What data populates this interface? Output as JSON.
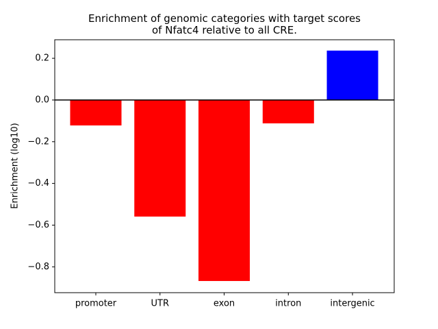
{
  "chart_data": {
    "type": "bar",
    "title": "Enrichment of genomic categories with target scores\nof Nfatc4 relative to all CRE.",
    "ylabel": "Enrichment (log10)",
    "categories": [
      "promoter",
      "UTR",
      "exon",
      "intron",
      "intergenic"
    ],
    "values": [
      -0.122,
      -0.559,
      -0.868,
      -0.112,
      0.237
    ],
    "colors": [
      "#ff0000",
      "#ff0000",
      "#ff0000",
      "#ff0000",
      "#0000ff"
    ],
    "ylim": [
      -0.924,
      0.289
    ],
    "yticks": [
      {
        "value": -0.8,
        "label": "−0.8"
      },
      {
        "value": -0.6,
        "label": "−0.6"
      },
      {
        "value": -0.4,
        "label": "−0.4"
      },
      {
        "value": -0.2,
        "label": "−0.2"
      },
      {
        "value": 0,
        "label": "0.0"
      },
      0.2
    ],
    "grid": false
  }
}
